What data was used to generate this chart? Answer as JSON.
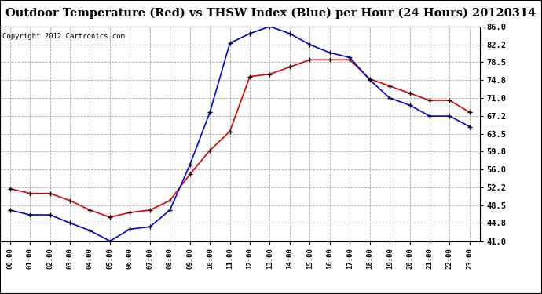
{
  "title": "Outdoor Temperature (Red) vs THSW Index (Blue) per Hour (24 Hours) 20120314",
  "copyright": "Copyright 2012 Cartronics.com",
  "hours": [
    0,
    1,
    2,
    3,
    4,
    5,
    6,
    7,
    8,
    9,
    10,
    11,
    12,
    13,
    14,
    15,
    16,
    17,
    18,
    19,
    20,
    21,
    22,
    23
  ],
  "red_temp": [
    52.0,
    51.0,
    51.0,
    49.5,
    47.5,
    46.0,
    47.0,
    47.5,
    49.5,
    55.0,
    60.0,
    64.0,
    75.5,
    76.0,
    77.5,
    79.0,
    79.0,
    79.0,
    75.0,
    73.5,
    72.0,
    70.5,
    70.5,
    68.0
  ],
  "blue_thsw": [
    47.5,
    46.5,
    46.5,
    44.8,
    43.2,
    41.0,
    43.5,
    44.0,
    47.5,
    57.0,
    68.0,
    82.5,
    84.5,
    86.0,
    84.5,
    82.2,
    80.5,
    79.5,
    74.8,
    71.0,
    69.5,
    67.2,
    67.2,
    65.0
  ],
  "ylim_min": 41.0,
  "ylim_max": 86.0,
  "yticks": [
    41.0,
    44.8,
    48.5,
    52.2,
    56.0,
    59.8,
    63.5,
    67.2,
    71.0,
    74.8,
    78.5,
    82.2,
    86.0
  ],
  "red_color": "#dd0000",
  "blue_color": "#0000dd",
  "bg_color": "#ffffff",
  "plot_bg_color": "#ffffff",
  "grid_color": "#aaaaaa",
  "title_fontsize": 10.5,
  "copyright_fontsize": 6.5
}
